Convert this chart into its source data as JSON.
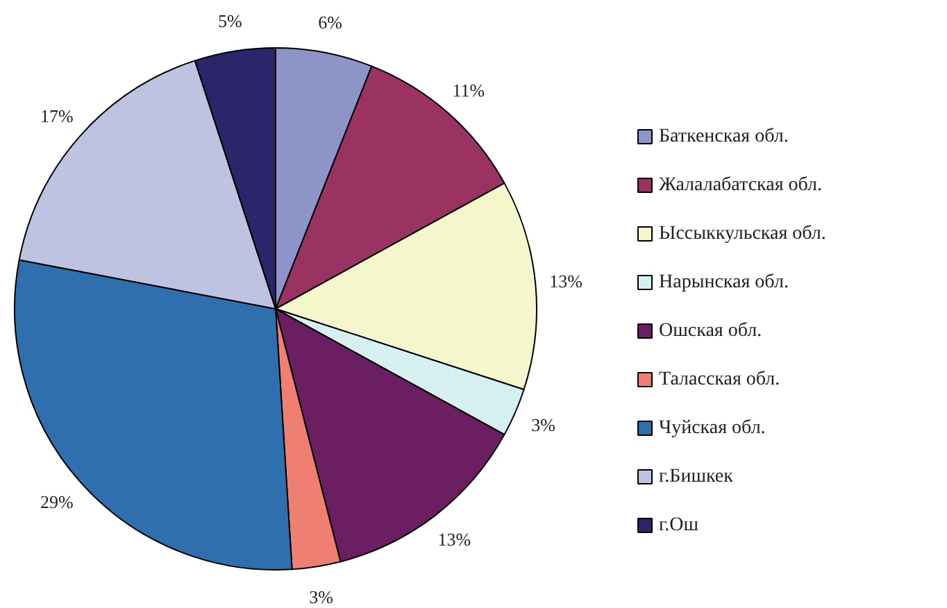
{
  "chart_data": {
    "type": "pie",
    "categories": [
      "Баткенская обл.",
      "Жалалабатская обл.",
      "Ысcыккульская обл.",
      "Нарынская обл.",
      "Ошская обл.",
      "Таласская обл.",
      "Чуйская обл.",
      "г.Бишкек",
      "г.Ош"
    ],
    "values": [
      6,
      11,
      13,
      3,
      13,
      3,
      29,
      17,
      5
    ],
    "value_labels": [
      "6%",
      "11%",
      "13%",
      "3%",
      "13%",
      "3%",
      "29%",
      "17%",
      "5%"
    ],
    "colors": [
      "#8c94c8",
      "#9a3262",
      "#f6f6cc",
      "#d6eff0",
      "#6b1f62",
      "#ef7f72",
      "#2f6fae",
      "#bfc3e2",
      "#2b2569"
    ],
    "legend": "right"
  }
}
